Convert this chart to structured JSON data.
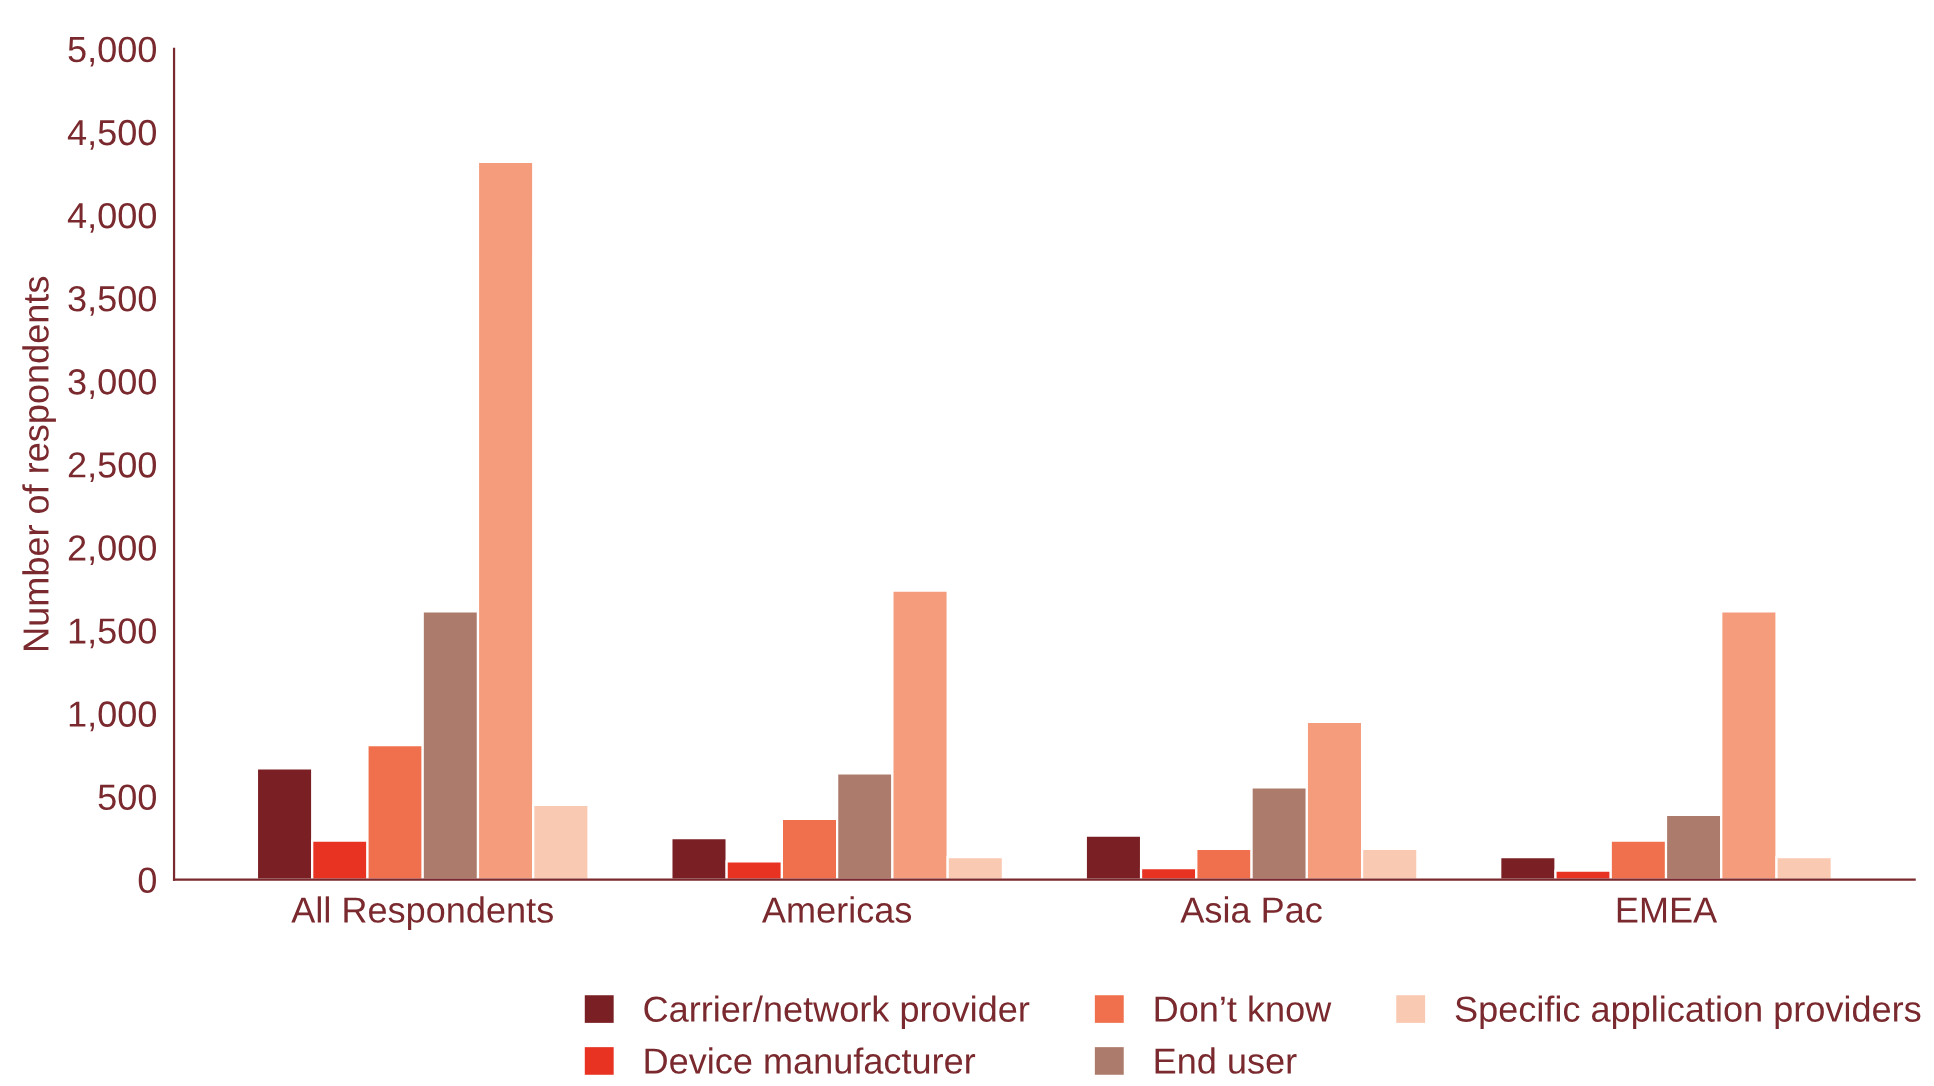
{
  "chart_data": {
    "type": "bar",
    "ylabel": "Number of respondents",
    "categories": [
      "All Respondents",
      "Americas",
      "Asia Pac",
      "EMEA"
    ],
    "series": [
      {
        "name": "Carrier/network provider",
        "color": "#7a1f23",
        "values": [
          670,
          250,
          265,
          135
        ]
      },
      {
        "name": "Device manufacturer",
        "color": "#e83323",
        "values": [
          235,
          110,
          70,
          55
        ]
      },
      {
        "name": "Don’t know",
        "color": "#f0704d",
        "values": [
          810,
          365,
          185,
          235
        ]
      },
      {
        "name": "End user",
        "color": "#ad7b6c",
        "values": [
          1615,
          640,
          555,
          390
        ]
      },
      {
        "color": "#f59c7c",
        "values": [
          4320,
          1740,
          950,
          1615
        ]
      },
      {
        "name": "Specific application providers",
        "color": "#fac9b1",
        "values": [
          450,
          135,
          185,
          135
        ]
      }
    ],
    "ylim": [
      0,
      5000
    ],
    "yticks": [
      0,
      {
        "value": 500,
        "label": "500"
      },
      {
        "value": 1000,
        "label": "1,000"
      },
      {
        "value": 1500,
        "label": "1,500"
      },
      {
        "value": 2000,
        "label": "2,000"
      },
      {
        "value": 2500,
        "label": "2,500"
      },
      {
        "value": 3000,
        "label": "3,000"
      },
      {
        "value": 3500,
        "label": "3,500"
      },
      {
        "value": 4000,
        "label": "4,000"
      },
      {
        "value": 4500,
        "label": "4,500"
      },
      {
        "value": 5000,
        "label": "5,000"
      }
    ],
    "grid": false,
    "legend": "bottom"
  }
}
